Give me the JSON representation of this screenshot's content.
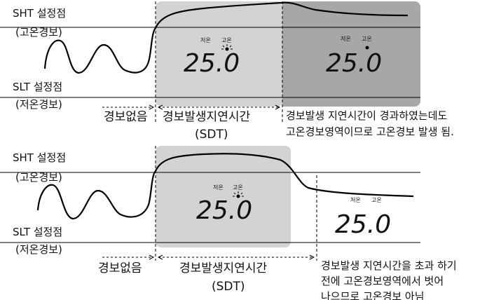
{
  "top": {
    "sht_label": "SHT 설정점",
    "sht_sub": "(고온경보)",
    "slt_label": "SLT 설정점",
    "slt_sub": "(저온경보)",
    "no_alarm": "경보없음",
    "sdt_label": "경보발생지연시간",
    "sdt_sub": "(SDT)",
    "display1": {
      "low": "저온",
      "high": "고온",
      "value": "25.0"
    },
    "display2": {
      "low": "저온",
      "high": "고온",
      "value": "25.0"
    },
    "note_line1": "경보발생 지연시간이 경과하였는데도",
    "note_line2": "고온경보영역이므로 고온경보 발생 됨."
  },
  "bottom": {
    "sht_label": "SHT 설정점",
    "sht_sub": "(고온경보)",
    "slt_label": "SLT 설정점",
    "slt_sub": "(저온경보)",
    "no_alarm": "경보없음",
    "sdt_label": "경보발생지연시간",
    "sdt_sub": "(SDT)",
    "display1": {
      "low": "저온",
      "high": "고온",
      "value": "25.0"
    },
    "display2": {
      "low": "저온",
      "high": "고온",
      "value": "25.0"
    },
    "note_line1": "경보발생 지연시간을 초과 하기",
    "note_line2": "전에 고온경보영역에서 벗어",
    "note_line3": "나으므로 고온경보 아님"
  },
  "colors": {
    "shade_light": "#d3d3d5",
    "shade_dark": "#a7a7a9",
    "line": "#000000"
  }
}
